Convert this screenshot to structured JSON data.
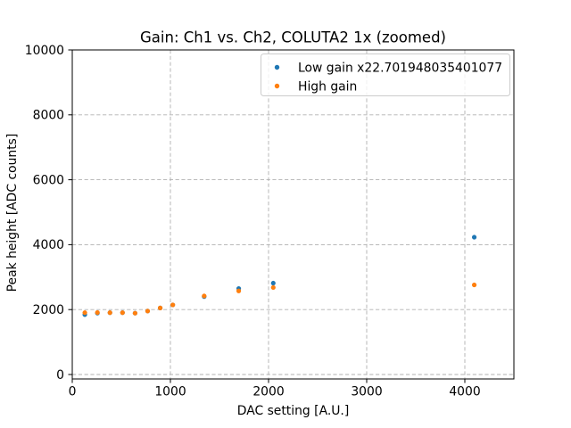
{
  "chart_data": {
    "type": "scatter",
    "title": "Gain: Ch1 vs. Ch2, COLUTA2 1x (zoomed)",
    "xlabel": "DAC setting [A.U.]",
    "ylabel": "Peak height [ADC counts]",
    "xlim": [
      0,
      4500
    ],
    "ylim": [
      0,
      10000
    ],
    "x_ticks": [
      0,
      1000,
      2000,
      3000,
      4000
    ],
    "y_ticks": [
      0,
      2000,
      4000,
      6000,
      8000,
      10000
    ],
    "grid": true,
    "grid_style": "dashed",
    "legend_position": "upper right",
    "x": [
      128,
      256,
      384,
      512,
      640,
      768,
      896,
      1024,
      1344,
      1696,
      2048,
      4096
    ],
    "series": [
      {
        "name": "Low gain x22.701948035401077",
        "color": "#1f77b4",
        "values": [
          1845,
          1890,
          1905,
          1905,
          1890,
          1955,
          2050,
          2145,
          2400,
          2650,
          2815,
          4230
        ]
      },
      {
        "name": "High gain",
        "color": "#ff7f0e",
        "values": [
          1905,
          1910,
          1905,
          1905,
          1890,
          1955,
          2050,
          2145,
          2420,
          2575,
          2680,
          2760
        ]
      }
    ]
  },
  "colors": {
    "figure_background": "#ffffff",
    "axes_background": "#ffffff",
    "grid": "#b0b0b0",
    "spine": "#000000",
    "legend_border": "#cccccc",
    "legend_background": "#ffffff"
  }
}
